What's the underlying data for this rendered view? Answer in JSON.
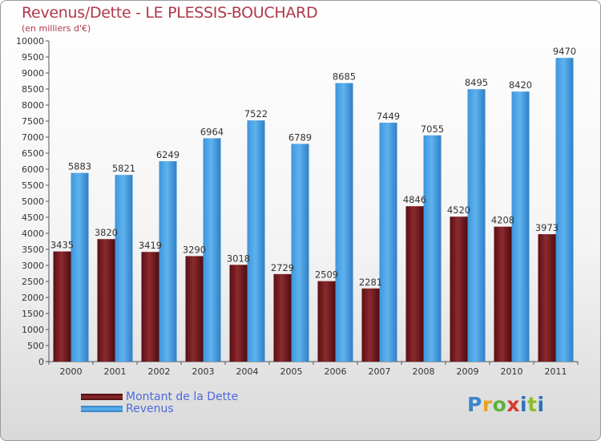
{
  "title": "Revenus/Dette - LE PLESSIS-BOUCHARD",
  "subtitle": "(en milliers d'€)",
  "logo": [
    "P",
    "r",
    "o",
    "x",
    "i",
    "t",
    "i"
  ],
  "colors": {
    "debt": "#7a1a20",
    "revenue": "#4aa3e6",
    "title": "#b0384a",
    "legend_text": "#4c6adc"
  },
  "chart_data": {
    "type": "bar",
    "title": "Revenus/Dette - LE PLESSIS-BOUCHARD",
    "ylabel": "(en milliers d'€)",
    "xlabel": "",
    "categories": [
      "2000",
      "2001",
      "2002",
      "2003",
      "2004",
      "2005",
      "2006",
      "2007",
      "2008",
      "2009",
      "2010",
      "2011"
    ],
    "series": [
      {
        "name": "Montant de la Dette",
        "color": "#7a1a20",
        "values": [
          3435,
          3820,
          3419,
          3290,
          3018,
          2729,
          2509,
          2281,
          4846,
          4520,
          4208,
          3973
        ]
      },
      {
        "name": "Revenus",
        "color": "#4aa3e6",
        "values": [
          5883,
          5821,
          6249,
          6964,
          7522,
          6789,
          8685,
          7449,
          7055,
          8495,
          8420,
          9470
        ]
      }
    ],
    "ylim": [
      0,
      10000
    ],
    "ytick_step": 500,
    "grid": false,
    "legend": "bottom-left"
  }
}
